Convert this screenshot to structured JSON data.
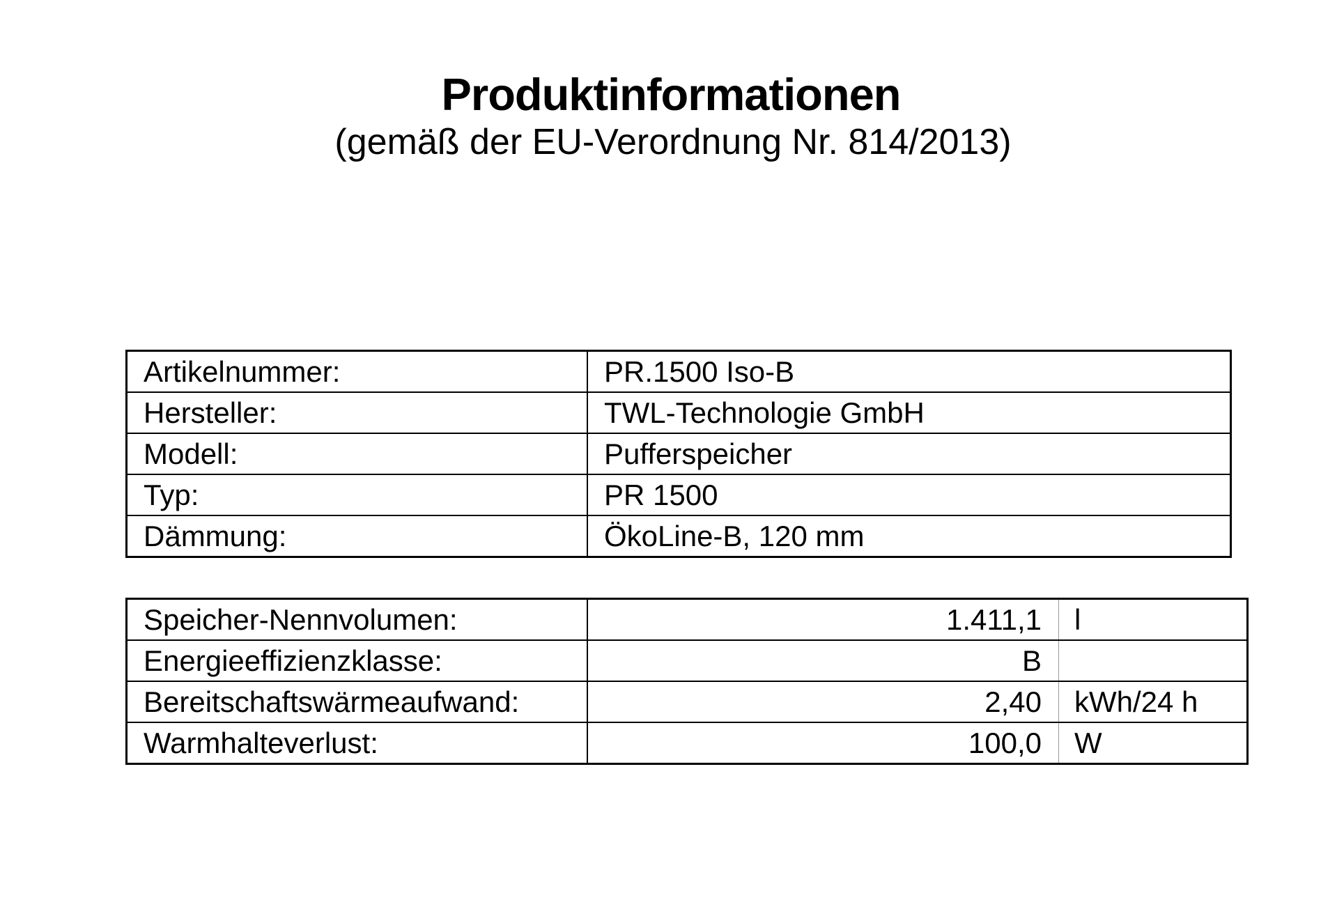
{
  "header": {
    "title": "Produktinformationen",
    "subtitle": "(gemäß der EU-Verordnung Nr. 814/2013)"
  },
  "product_table": {
    "rows": [
      {
        "label": "Artikelnummer:",
        "value": "PR.1500 Iso-B"
      },
      {
        "label": "Hersteller:",
        "value": "TWL-Technologie GmbH"
      },
      {
        "label": "Modell:",
        "value": "Pufferspeicher"
      },
      {
        "label": "Typ:",
        "value": "PR 1500"
      },
      {
        "label": "Dämmung:",
        "value": "ÖkoLine-B, 120 mm"
      }
    ]
  },
  "energy_table": {
    "rows": [
      {
        "label": "Speicher-Nennvolumen:",
        "value": "1.411,1",
        "unit": "l"
      },
      {
        "label": "Energieeffizienzklasse:",
        "value": "B",
        "unit": ""
      },
      {
        "label": "Bereitschaftswärmeaufwand:",
        "value": "2,40",
        "unit": "kWh/24 h"
      },
      {
        "label": "Warmhalteverlust:",
        "value": "100,0",
        "unit": "W"
      }
    ]
  },
  "colors": {
    "text": "#000000",
    "background": "#ffffff",
    "table_border": "#000000",
    "unit_divider": "#999999"
  }
}
